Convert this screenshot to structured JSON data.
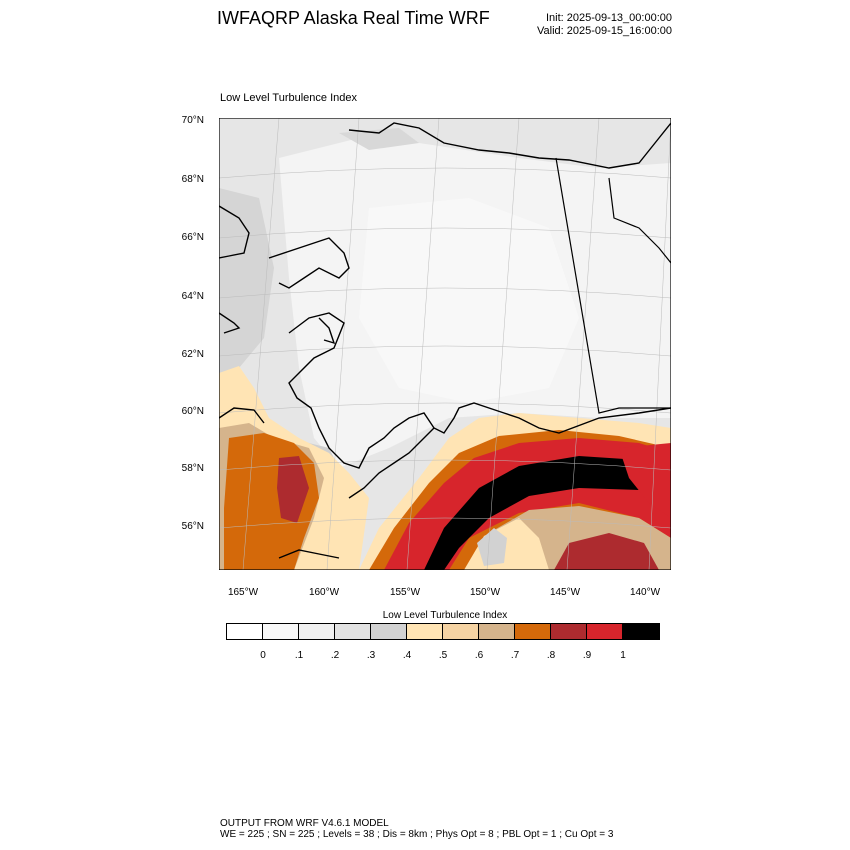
{
  "header": {
    "title": "IWFAQRP Alaska Real Time WRF",
    "init": "Init: 2025-09-13_00:00:00",
    "valid": "Valid: 2025-09-15_16:00:00"
  },
  "map": {
    "title": "Low Level Turbulence Index",
    "lat_labels": [
      "70°N",
      "68°N",
      "66°N",
      "64°N",
      "62°N",
      "60°N",
      "58°N",
      "56°N"
    ],
    "lon_labels": [
      "165°W",
      "160°W",
      "155°W",
      "150°W",
      "145°W",
      "140°W"
    ]
  },
  "colorbar": {
    "title": "Low Level Turbulence Index",
    "colors": [
      "#ffffff",
      "#f8f8f8",
      "#f0f0f0",
      "#e2e2e2",
      "#d2d2d2",
      "#ffe4b4",
      "#f5d3a3",
      "#d5b48c",
      "#d4690a",
      "#ad2b2f",
      "#d7252c",
      "#000000"
    ],
    "labels": [
      "0",
      ".1",
      ".2",
      ".3",
      ".4",
      ".5",
      ".6",
      ".7",
      ".8",
      ".9",
      "1"
    ]
  },
  "footer": {
    "line1": "OUTPUT FROM WRF V4.6.1 MODEL",
    "line2": "WE = 225 ; SN = 225 ; Levels = 38 ; Dis = 8km ; Phys Opt = 8 ; PBL Opt = 1 ; Cu Opt = 3"
  }
}
